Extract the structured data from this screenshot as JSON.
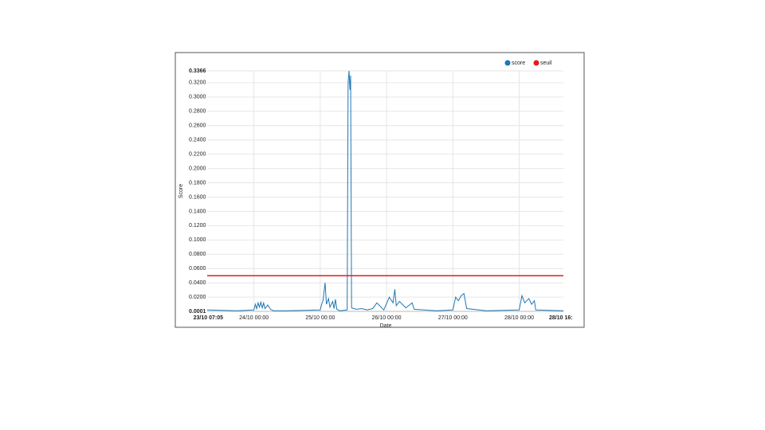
{
  "chart_data": {
    "type": "line",
    "x_label": "Date",
    "y_label": "Score",
    "xlim": [
      "23/10 07:05",
      "28/10 16:00"
    ],
    "xticks": [
      "23/10 07:05",
      "24/10 00:00",
      "25/10 00:00",
      "26/10 00:00",
      "27/10 00:00",
      "28/10 00:00",
      {
        "value": "28/10 16:00",
        "label": "28/10 16:"
      }
    ],
    "ylim": [
      0.0001,
      0.3366
    ],
    "yticks": [
      0.0001,
      {
        "value": 0.02,
        "label": "0.0200"
      },
      {
        "value": 0.04,
        "label": "0.0400"
      },
      {
        "value": 0.06,
        "label": "0.0600"
      },
      {
        "value": 0.08,
        "label": "0.0800"
      },
      {
        "value": 0.1,
        "label": "0.1000"
      },
      {
        "value": 0.12,
        "label": "0.1200"
      },
      {
        "value": 0.14,
        "label": "0.1400"
      },
      {
        "value": 0.16,
        "label": "0.1600"
      },
      {
        "value": 0.18,
        "label": "0.1800"
      },
      {
        "value": 0.2,
        "label": "0.2000"
      },
      {
        "value": 0.22,
        "label": "0.2200"
      },
      {
        "value": 0.24,
        "label": "0.2400"
      },
      {
        "value": 0.26,
        "label": "0.2600"
      },
      {
        "value": 0.28,
        "label": "0.2800"
      },
      {
        "value": 0.3,
        "label": "0.3000"
      },
      {
        "value": 0.32,
        "label": "0.3200"
      },
      0.3366
    ],
    "grid": true,
    "legend": "top-right",
    "series": [
      {
        "name": "score",
        "color": "#1f77b4",
        "x": [
          "23/10 07:05",
          "23/10 18:00",
          "24/10 00:00",
          "24/10 00:30",
          "24/10 01:00",
          "24/10 01:30",
          "24/10 02:00",
          "24/10 02:30",
          "24/10 03:00",
          "24/10 03:30",
          "24/10 04:00",
          "24/10 05:00",
          "24/10 06:00",
          "24/10 07:00",
          "24/10 12:00",
          "25/10 00:00",
          "25/10 00:30",
          "25/10 01:00",
          "25/10 01:45",
          "25/10 02:15",
          "25/10 03:00",
          "25/10 03:30",
          "25/10 04:30",
          "25/10 05:00",
          "25/10 05:30",
          "25/10 06:00",
          "25/10 07:00",
          "25/10 09:45",
          "25/10 10:05",
          "25/10 10:25",
          "25/10 10:45",
          "25/10 11:00",
          "25/10 11:20",
          "25/10 13:00",
          "25/10 15:00",
          "25/10 17:00",
          "25/10 19:00",
          "25/10 20:30",
          "25/10 22:00",
          "25/10 23:00",
          "26/10 01:00",
          "26/10 02:20",
          "26/10 03:00",
          "26/10 03:30",
          "26/10 04:40",
          "26/10 07:00",
          "26/10 09:15",
          "26/10 10:00",
          "26/10 18:00",
          "27/10 00:00",
          "27/10 01:00",
          "27/10 02:00",
          "27/10 03:00",
          "27/10 04:00",
          "27/10 05:00",
          "27/10 12:00",
          "28/10 00:00",
          "28/10 01:00",
          "28/10 02:00",
          "28/10 03:30",
          "28/10 04:30",
          "28/10 05:30",
          "28/10 06:00",
          "28/10 16:00"
        ],
        "values": [
          0.002,
          0.001,
          0.002,
          0.01,
          0.004,
          0.012,
          0.006,
          0.013,
          0.005,
          0.012,
          0.004,
          0.009,
          0.003,
          0.001,
          0.001,
          0.002,
          0.01,
          0.015,
          0.04,
          0.01,
          0.018,
          0.006,
          0.014,
          0.004,
          0.017,
          0.003,
          0.001,
          0.002,
          0.32,
          0.3366,
          0.31,
          0.33,
          0.005,
          0.003,
          0.004,
          0.002,
          0.004,
          0.012,
          0.006,
          0.002,
          0.02,
          0.012,
          0.031,
          0.008,
          0.014,
          0.005,
          0.012,
          0.003,
          0.001,
          0.002,
          0.02,
          0.015,
          0.022,
          0.025,
          0.004,
          0.001,
          0.002,
          0.022,
          0.012,
          0.018,
          0.01,
          0.015,
          0.002,
          0.001
        ]
      },
      {
        "name": "seuil",
        "color": "#e8191c",
        "x": [
          "23/10 07:05",
          "28/10 16:00"
        ],
        "values": [
          0.05,
          0.05
        ]
      }
    ]
  }
}
